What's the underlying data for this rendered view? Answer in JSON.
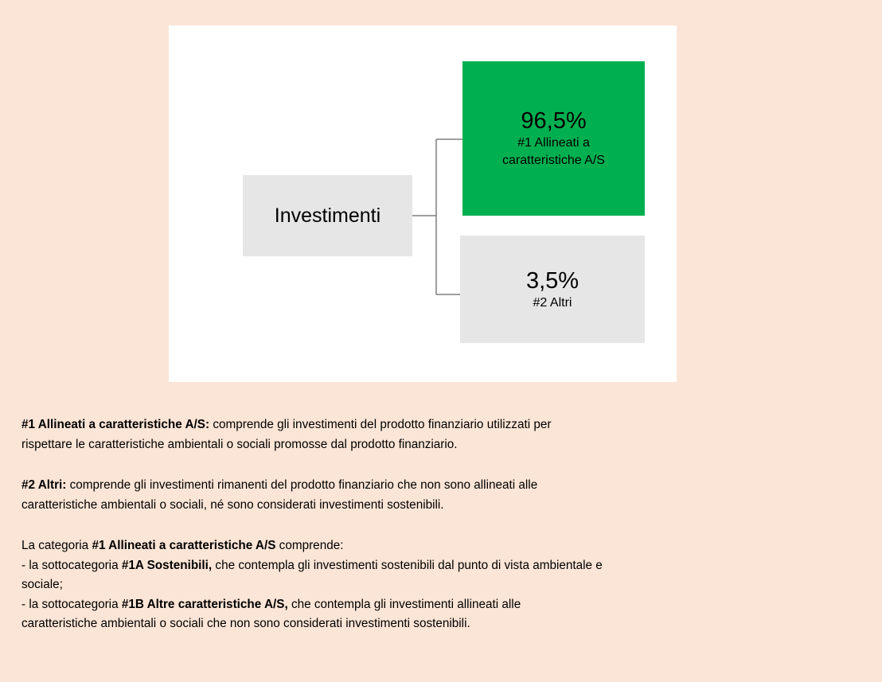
{
  "diagram": {
    "root": {
      "label": "Investimenti"
    },
    "children": [
      {
        "value": "96,5%",
        "label": "#1 Allineati a caratteristiche A/S"
      },
      {
        "value": "3,5%",
        "label": "#2 Altri"
      }
    ]
  },
  "paragraphs": [
    [
      [
        {
          "b": "#1 Allineati a caratteristiche A/S:"
        },
        {
          "t": " comprende gli investimenti del prodotto finanziario utilizzati per"
        }
      ],
      [
        {
          "t": "rispettare le caratteristiche ambientali o sociali promosse dal prodotto finanziario."
        }
      ]
    ],
    [
      [
        {
          "b": "#2 Altri:"
        },
        {
          "t": " comprende gli investimenti rimanenti del prodotto finanziario che non sono allineati alle"
        }
      ],
      [
        {
          "t": "caratteristiche ambientali o sociali, né sono considerati investimenti sostenibili."
        }
      ]
    ],
    [
      [
        {
          "t": "La categoria "
        },
        {
          "b": "#1 Allineati a caratteristiche A/S"
        },
        {
          "t": " comprende:"
        }
      ],
      [
        {
          "t": "- la sottocategoria "
        },
        {
          "b": "#1A Sostenibili,"
        },
        {
          "t": " che contempla gli investimenti sostenibili dal punto di vista ambientale e"
        }
      ],
      [
        {
          "t": "sociale;"
        }
      ],
      [
        {
          "t": "- la sottocategoria "
        },
        {
          "b": "#1B Altre caratteristiche A/S,"
        },
        {
          "t": " che contempla gli investimenti allineati alle"
        }
      ],
      [
        {
          "t": "caratteristiche ambientali o sociali che non sono considerati investimenti sostenibili."
        }
      ]
    ]
  ]
}
